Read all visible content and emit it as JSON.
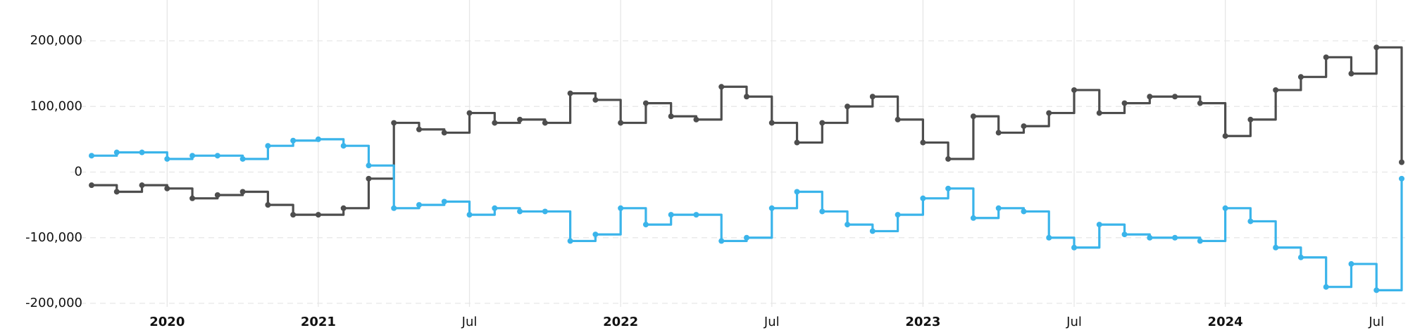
{
  "chart_data": {
    "type": "line",
    "step": true,
    "grid": true,
    "markers": true,
    "x": [
      "2020-04",
      "2020-05",
      "2020-06",
      "2020-07",
      "2020-08",
      "2020-09",
      "2020-10",
      "2020-11",
      "2020-12",
      "2021-01",
      "2021-02",
      "2021-03",
      "2021-04",
      "2021-05",
      "2021-06",
      "2021-07",
      "2021-08",
      "2021-09",
      "2021-10",
      "2021-11",
      "2021-12",
      "2022-01",
      "2022-02",
      "2022-03",
      "2022-04",
      "2022-05",
      "2022-06",
      "2022-07",
      "2022-08",
      "2022-09",
      "2022-10",
      "2022-11",
      "2022-12",
      "2023-01",
      "2023-02",
      "2023-03",
      "2023-04",
      "2023-05",
      "2023-06",
      "2023-07",
      "2023-08",
      "2023-09",
      "2023-10",
      "2023-11",
      "2023-12",
      "2024-01",
      "2024-02",
      "2024-03",
      "2024-04",
      "2024-05",
      "2024-06",
      "2024-07",
      "2024-08"
    ],
    "series": [
      {
        "color": "#4d4d4d",
        "values": [
          -20000,
          -30000,
          -20000,
          -25000,
          -40000,
          -35000,
          -30000,
          -50000,
          -65000,
          -65000,
          -55000,
          -10000,
          75000,
          65000,
          60000,
          90000,
          75000,
          80000,
          75000,
          120000,
          110000,
          75000,
          105000,
          85000,
          80000,
          130000,
          115000,
          75000,
          45000,
          75000,
          100000,
          115000,
          80000,
          45000,
          20000,
          85000,
          60000,
          70000,
          90000,
          125000,
          90000,
          105000,
          115000,
          115000,
          105000,
          55000,
          80000,
          125000,
          145000,
          175000,
          150000,
          190000,
          15000
        ]
      },
      {
        "color": "#3ab4ea",
        "values": [
          25000,
          30000,
          30000,
          20000,
          25000,
          25000,
          20000,
          40000,
          48000,
          50000,
          40000,
          10000,
          -55000,
          -50000,
          -45000,
          -65000,
          -55000,
          -60000,
          -60000,
          -105000,
          -95000,
          -55000,
          -80000,
          -65000,
          -65000,
          -105000,
          -100000,
          -55000,
          -30000,
          -60000,
          -80000,
          -90000,
          -65000,
          -40000,
          -25000,
          -70000,
          -55000,
          -60000,
          -100000,
          -115000,
          -80000,
          -95000,
          -100000,
          -100000,
          -105000,
          -55000,
          -75000,
          -115000,
          -130000,
          -175000,
          -140000,
          -180000,
          -10000
        ]
      }
    ],
    "xlim": [
      "2020-04",
      "2024-08"
    ],
    "xticks": [
      {
        "value": "2020-07",
        "label": "2020"
      },
      {
        "value": "2021-01",
        "label": "2021"
      },
      {
        "value": "2021-07",
        "label": "Jul"
      },
      {
        "value": "2022-01",
        "label": "2022"
      },
      {
        "value": "2022-07",
        "label": "Jul"
      },
      {
        "value": "2023-01",
        "label": "2023"
      },
      {
        "value": "2023-07",
        "label": "Jul"
      },
      {
        "value": "2024-01",
        "label": "2024"
      },
      {
        "value": "2024-07",
        "label": "Jul"
      }
    ],
    "ylim": [
      -200000,
      200000
    ],
    "yticks": [
      {
        "value": -200000,
        "label": "-200,000"
      },
      {
        "value": -100000,
        "label": "-100,000"
      },
      0,
      {
        "value": 100000,
        "label": "100,000"
      },
      {
        "value": 200000,
        "label": "200,000"
      }
    ]
  }
}
